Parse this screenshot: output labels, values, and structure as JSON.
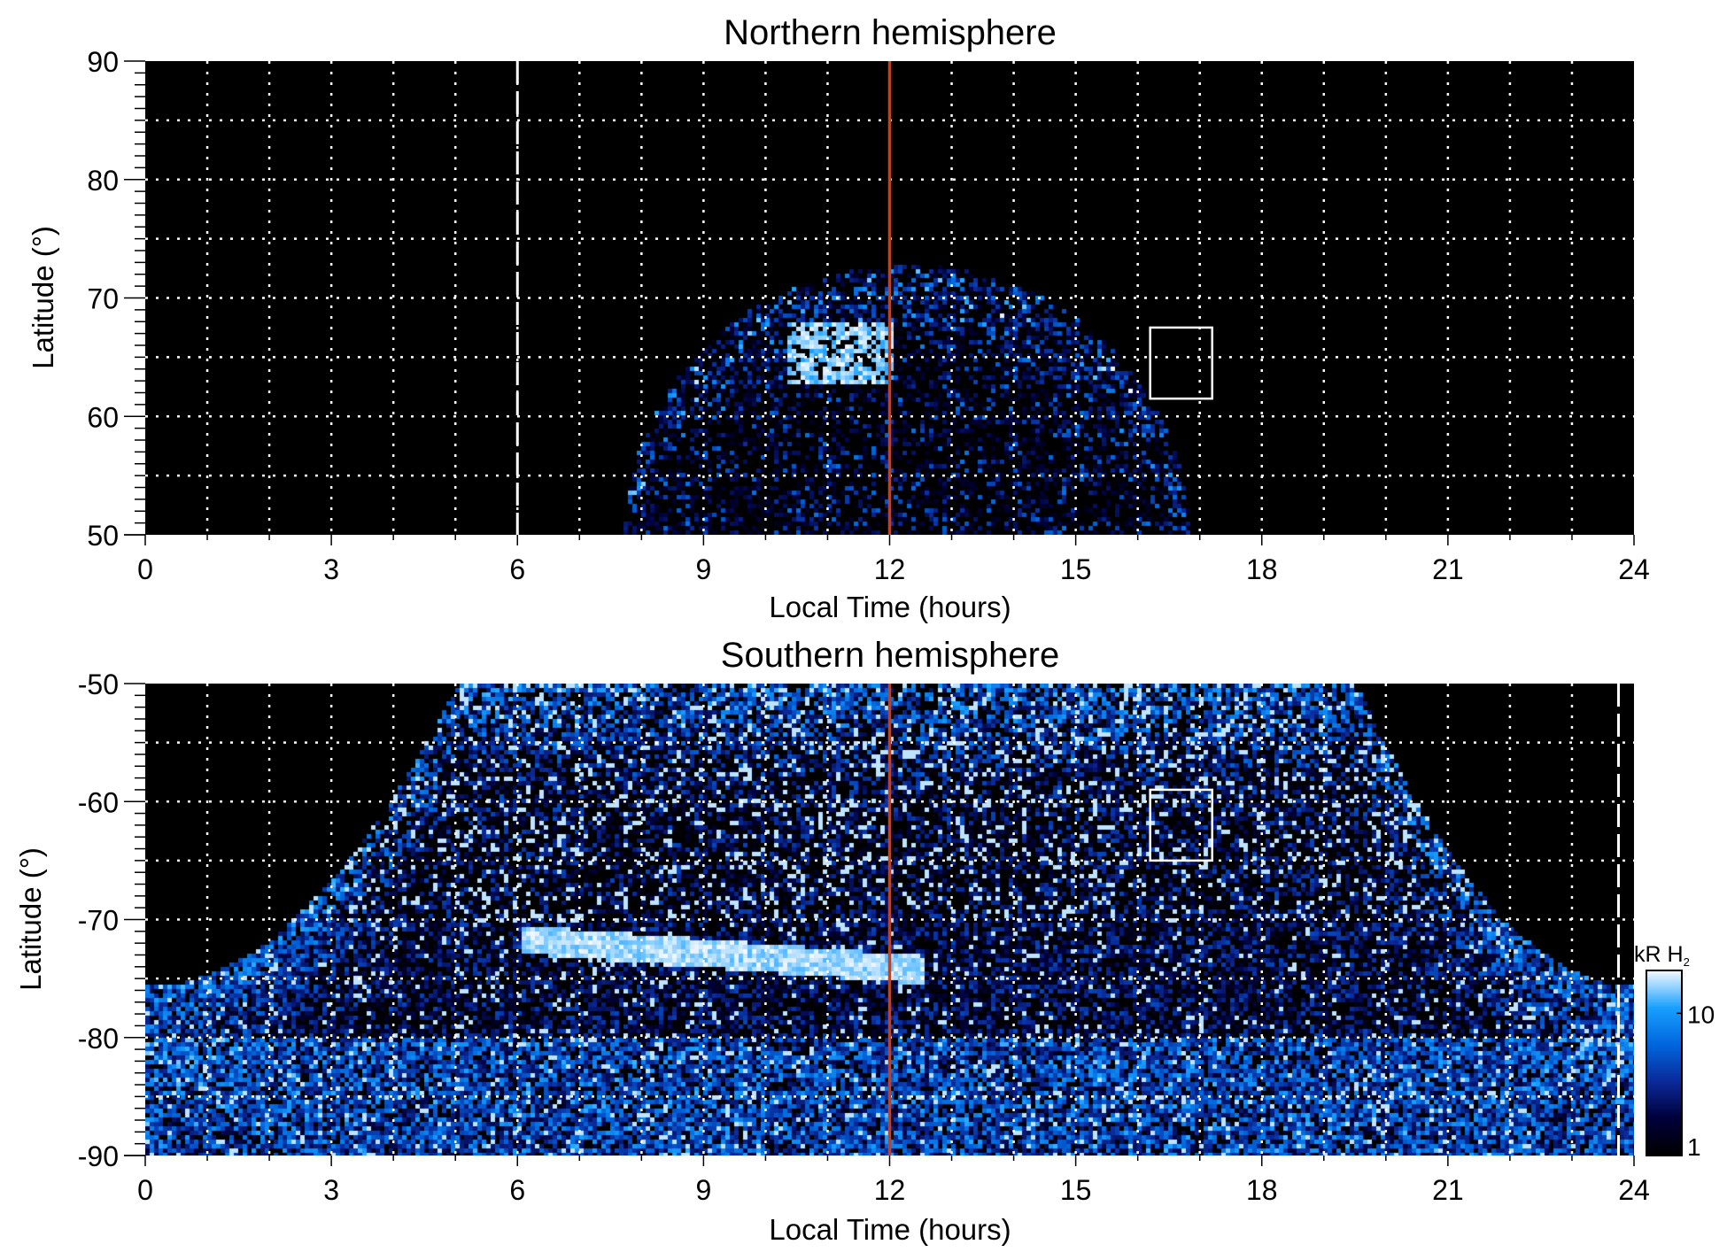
{
  "chart_data": [
    {
      "type": "heatmap",
      "title": "Northern hemisphere",
      "xlabel": "Local Time (hours)",
      "ylabel": "Latitude (°)",
      "xlim": [
        0,
        24
      ],
      "ylim": [
        50,
        90
      ],
      "xticks": [
        "0",
        "3",
        "6",
        "9",
        "12",
        "15",
        "18",
        "21",
        "24"
      ],
      "yticks": [
        "50",
        "60",
        "70",
        "80",
        "90"
      ],
      "grid": true,
      "noon_line_lt": 12,
      "dashed_line_lt": 6,
      "box": {
        "lt": [
          16.2,
          17.2
        ],
        "lat": [
          61.5,
          67.5
        ]
      },
      "emission_region": {
        "lt_range": [
          7.7,
          16.8
        ],
        "max_lat": 73
      },
      "bright_feature": {
        "lt": [
          10.3,
          12.0
        ],
        "lat": [
          63,
          68
        ]
      }
    },
    {
      "type": "heatmap",
      "title": "Southern hemisphere",
      "xlabel": "Local Time (hours)",
      "ylabel": "Latitude (°)",
      "xlim": [
        0,
        24
      ],
      "ylim": [
        -90,
        -50
      ],
      "xticks": [
        "0",
        "3",
        "6",
        "9",
        "12",
        "15",
        "18",
        "21",
        "24"
      ],
      "yticks": [
        "-50",
        "-60",
        "-70",
        "-80",
        "-90"
      ],
      "grid": true,
      "noon_line_lt": 12,
      "dashed_line_lt": 23.75,
      "box": {
        "lt": [
          16.2,
          17.2
        ],
        "lat": [
          -65,
          -59
        ]
      },
      "emission_region": {
        "lt_range": [
          0,
          24
        ],
        "edge_lat": -75.5,
        "top_lt_range": [
          5,
          19.5
        ]
      },
      "bright_feature": {
        "lt": [
          6,
          12.5
        ],
        "lat": [
          -74.5,
          -71
        ]
      }
    }
  ],
  "colorbar": {
    "label": "kR H",
    "label_sub": "2",
    "scale": "log",
    "range": [
      1,
      20
    ],
    "ticks": [
      "1",
      "10"
    ],
    "colors": [
      "#000000",
      "#00003a",
      "#0a2a9a",
      "#0066dd",
      "#19a0ff",
      "#f4f9ff"
    ]
  },
  "colors": {
    "noon_line": "#d23c10",
    "grid": "#ffffff",
    "background": "#000000"
  }
}
